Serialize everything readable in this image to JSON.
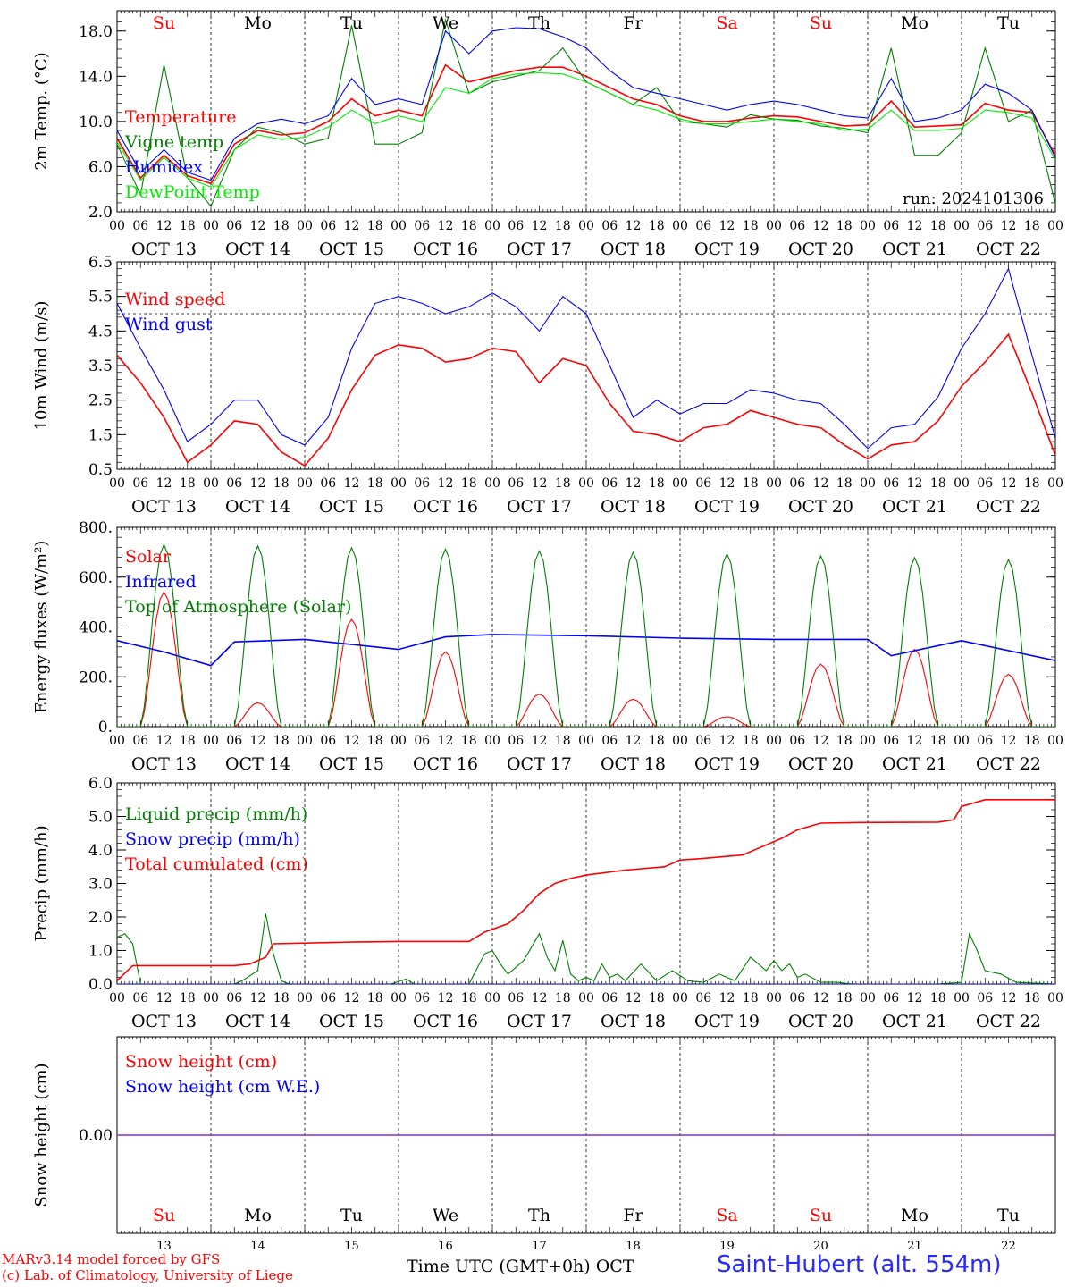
{
  "run_label": "run: 2024101306",
  "days": [
    {
      "abbr": "Su",
      "date": "OCT 13",
      "num": "13",
      "color": "#ff0000"
    },
    {
      "abbr": "Mo",
      "date": "OCT 14",
      "num": "14",
      "color": "#000000"
    },
    {
      "abbr": "Tu",
      "date": "OCT 15",
      "num": "15",
      "color": "#000000"
    },
    {
      "abbr": "We",
      "date": "OCT 16",
      "num": "16",
      "color": "#000000"
    },
    {
      "abbr": "Th",
      "date": "OCT 17",
      "num": "17",
      "color": "#000000"
    },
    {
      "abbr": "Fr",
      "date": "OCT 18",
      "num": "18",
      "color": "#000000"
    },
    {
      "abbr": "Sa",
      "date": "OCT 19",
      "num": "19",
      "color": "#ff0000"
    },
    {
      "abbr": "Su",
      "date": "OCT 20",
      "num": "20",
      "color": "#ff0000"
    },
    {
      "abbr": "Mo",
      "date": "OCT 21",
      "num": "21",
      "color": "#000000"
    },
    {
      "abbr": "Tu",
      "date": "OCT 22",
      "num": "22",
      "color": "#000000"
    }
  ],
  "hour_ticks": [
    "00",
    "06",
    "12",
    "18"
  ],
  "last_tick": "00",
  "footer": {
    "credits_line1": "MARv3.14 model forced by GFS",
    "credits_line2": "(c) Lab. of Climatology, University of Liege",
    "xaxis_title": "Time UTC (GMT+0h) OCT",
    "station": "Saint-Hubert (alt. 554m)"
  },
  "chart_data": [
    {
      "type": "line",
      "ylabel": "2m Temp. (°C)",
      "ylim": [
        2,
        19.8
      ],
      "yticks": [
        2,
        6,
        10,
        14,
        18
      ],
      "ytick_labels": [
        "2.0",
        "6.0",
        "10.0",
        "14.0",
        "18.0"
      ],
      "x_hours": [
        0,
        6,
        12,
        18,
        24,
        30,
        36,
        42,
        48,
        54,
        60,
        66,
        72,
        78,
        84,
        90,
        96,
        102,
        108,
        114,
        120,
        126,
        132,
        138,
        144,
        150,
        156,
        162,
        168,
        174,
        180,
        186,
        192,
        198,
        204,
        210,
        216,
        222,
        228,
        234,
        240
      ],
      "series": [
        {
          "name": "Temperature",
          "color": "#ff0000",
          "values": [
            8.5,
            5.0,
            7.0,
            5.2,
            4.5,
            8.0,
            9.2,
            8.8,
            9.0,
            10.0,
            12.0,
            10.5,
            11.0,
            10.5,
            15.0,
            13.5,
            14.0,
            14.5,
            14.8,
            14.8,
            14.0,
            13.0,
            12.0,
            11.5,
            10.5,
            10.0,
            10.0,
            10.3,
            10.5,
            10.4,
            10.0,
            9.6,
            9.7,
            11.8,
            9.5,
            9.6,
            9.7,
            11.6,
            11.0,
            10.8,
            7.0
          ]
        },
        {
          "name": "Vigne temp",
          "color": "#008000",
          "values": [
            8.0,
            3.5,
            15.0,
            5.0,
            2.5,
            7.5,
            9.5,
            9.0,
            8.0,
            8.5,
            18.5,
            8.0,
            8.0,
            9.0,
            19.0,
            12.5,
            13.5,
            14.0,
            14.5,
            16.5,
            13.5,
            12.5,
            11.5,
            13.0,
            10.0,
            9.8,
            9.5,
            10.6,
            10.2,
            10.1,
            9.6,
            9.4,
            9.0,
            16.5,
            7.0,
            7.0,
            9.0,
            16.5,
            10.0,
            11.0,
            2.7
          ]
        },
        {
          "name": "Humidex",
          "color": "#0000ff",
          "values": [
            9.2,
            5.5,
            7.5,
            5.5,
            4.8,
            8.5,
            9.8,
            10.2,
            9.8,
            10.5,
            13.8,
            11.5,
            12.0,
            11.5,
            18.0,
            16.0,
            18.0,
            18.3,
            18.2,
            17.5,
            16.5,
            14.5,
            13.0,
            12.5,
            12.0,
            11.5,
            11.0,
            11.5,
            11.8,
            11.5,
            11.0,
            10.5,
            10.3,
            13.8,
            10.0,
            10.3,
            11.0,
            13.3,
            12.5,
            11.0,
            6.8
          ]
        },
        {
          "name": "DewPoint Temp",
          "color": "#00ee00",
          "values": [
            8.2,
            4.8,
            6.8,
            5.0,
            4.2,
            7.5,
            8.8,
            8.4,
            8.6,
            9.5,
            11.0,
            9.8,
            10.5,
            10.0,
            13.0,
            12.5,
            13.8,
            14.2,
            14.3,
            14.2,
            13.5,
            12.5,
            11.5,
            11.0,
            10.2,
            9.8,
            9.8,
            10.0,
            10.2,
            10.0,
            9.8,
            9.2,
            9.3,
            11.0,
            9.2,
            9.2,
            9.4,
            11.0,
            10.8,
            10.3,
            6.6
          ]
        }
      ]
    },
    {
      "type": "line",
      "ylabel": "10m Wind (m/s)",
      "ylim": [
        0.5,
        6.5
      ],
      "yticks": [
        0.5,
        1.5,
        2.5,
        3.5,
        4.5,
        5.5,
        6.5
      ],
      "ytick_labels": [
        "0.5",
        "1.5",
        "2.5",
        "3.5",
        "4.5",
        "5.5",
        "6.5"
      ],
      "reference_line": 5.0,
      "x_hours": [
        0,
        6,
        12,
        18,
        24,
        30,
        36,
        42,
        48,
        54,
        60,
        66,
        72,
        78,
        84,
        90,
        96,
        102,
        108,
        114,
        120,
        126,
        132,
        138,
        144,
        150,
        156,
        162,
        168,
        174,
        180,
        186,
        192,
        198,
        204,
        210,
        216,
        222,
        228,
        234,
        240
      ],
      "series": [
        {
          "name": "Wind speed",
          "color": "#ff0000",
          "values": [
            3.8,
            3.0,
            2.0,
            0.7,
            1.2,
            1.9,
            1.8,
            1.0,
            0.6,
            1.4,
            2.8,
            3.8,
            4.1,
            4.0,
            3.6,
            3.7,
            4.0,
            3.9,
            3.0,
            3.7,
            3.5,
            2.4,
            1.6,
            1.5,
            1.3,
            1.7,
            1.8,
            2.2,
            2.0,
            1.8,
            1.7,
            1.2,
            0.8,
            1.2,
            1.3,
            1.9,
            2.9,
            3.6,
            4.4,
            2.7,
            0.9
          ]
        },
        {
          "name": "Wind gust",
          "color": "#0000ff",
          "values": [
            5.3,
            4.0,
            2.8,
            1.3,
            1.8,
            2.5,
            2.5,
            1.5,
            1.2,
            2.0,
            4.0,
            5.3,
            5.5,
            5.3,
            5.0,
            5.2,
            5.6,
            5.2,
            4.5,
            5.5,
            5.0,
            3.5,
            2.0,
            2.5,
            2.1,
            2.4,
            2.4,
            2.8,
            2.7,
            2.5,
            2.4,
            1.8,
            1.1,
            1.7,
            1.8,
            2.6,
            4.0,
            5.0,
            6.3,
            3.8,
            1.4
          ]
        }
      ]
    },
    {
      "type": "line",
      "ylabel": "Energy fluxes (W/m²)",
      "ylim": [
        0,
        800
      ],
      "yticks": [
        0,
        200,
        400,
        600,
        800
      ],
      "ytick_labels": [
        "0.",
        "200.",
        "400.",
        "600.",
        "800."
      ],
      "daylight_hours": [
        6,
        18
      ],
      "series": [
        {
          "name": "Solar",
          "color": "#ff0000",
          "daily_peaks": [
            540,
            95,
            430,
            300,
            130,
            110,
            40,
            250,
            310,
            210
          ]
        },
        {
          "name": "Infrared",
          "color": "#0000ff",
          "x_hours": [
            0,
            12,
            24,
            30,
            48,
            72,
            84,
            96,
            120,
            144,
            168,
            192,
            198,
            216,
            240
          ],
          "values": [
            345,
            300,
            245,
            340,
            350,
            310,
            360,
            370,
            365,
            355,
            350,
            350,
            285,
            345,
            265
          ]
        },
        {
          "name": "Top of Atmosphere (Solar)",
          "color": "#008000",
          "daily_peaks": [
            730,
            725,
            718,
            712,
            705,
            700,
            693,
            685,
            678,
            670
          ]
        }
      ]
    },
    {
      "type": "line",
      "ylabel": "Precip (mm/h)",
      "ylim": [
        0,
        6
      ],
      "yticks": [
        0,
        1,
        2,
        3,
        4,
        5,
        6
      ],
      "ytick_labels": [
        "0.0",
        "1.0",
        "2.0",
        "3.0",
        "4.0",
        "5.0",
        "6.0"
      ],
      "series": [
        {
          "name": "Liquid precip (mm/h)",
          "color": "#008000",
          "x_hours": [
            0,
            2,
            4,
            6,
            8,
            30,
            32,
            36,
            38,
            40,
            42,
            44,
            70,
            74,
            76,
            90,
            94,
            96,
            98,
            100,
            104,
            108,
            110,
            112,
            114,
            116,
            118,
            120,
            122,
            124,
            126,
            128,
            130,
            134,
            138,
            142,
            146,
            150,
            154,
            158,
            162,
            166,
            168,
            170,
            172,
            174,
            176,
            180,
            184,
            188,
            210,
            216,
            218,
            220,
            222,
            226,
            230,
            240
          ],
          "values": [
            1.4,
            1.5,
            1.2,
            0,
            0,
            0,
            0.1,
            0.4,
            2.1,
            0.9,
            0.1,
            0,
            0,
            0.15,
            0,
            0,
            0.9,
            1.0,
            0.6,
            0.3,
            0.7,
            1.5,
            0.8,
            0.4,
            1.3,
            0.3,
            0.1,
            0.2,
            0.1,
            0.6,
            0.2,
            0.3,
            0.1,
            0.6,
            0.1,
            0.4,
            0.1,
            0.05,
            0.3,
            0.1,
            0.8,
            0.4,
            0.7,
            0.4,
            0.6,
            0.2,
            0.3,
            0.05,
            0.05,
            0,
            0,
            0.05,
            1.5,
            1.0,
            0.4,
            0.3,
            0.05,
            0
          ]
        },
        {
          "name": "Snow precip (mm/h)",
          "color": "#0000ff",
          "x_hours": [
            0,
            240
          ],
          "values": [
            0,
            0
          ]
        },
        {
          "name": "Total cumulated (cm)",
          "color": "#ff0000",
          "x_hours": [
            0,
            4,
            30,
            34,
            38,
            40,
            60,
            72,
            90,
            94,
            100,
            104,
            108,
            112,
            116,
            120,
            130,
            140,
            144,
            150,
            160,
            165,
            170,
            174,
            180,
            190,
            210,
            214,
            216,
            222,
            240
          ],
          "values": [
            0.1,
            0.55,
            0.55,
            0.6,
            0.8,
            1.2,
            1.25,
            1.27,
            1.27,
            1.55,
            1.8,
            2.2,
            2.7,
            3.0,
            3.15,
            3.25,
            3.4,
            3.5,
            3.7,
            3.75,
            3.85,
            4.1,
            4.35,
            4.6,
            4.8,
            4.82,
            4.83,
            4.9,
            5.3,
            5.5,
            5.5
          ]
        }
      ]
    },
    {
      "type": "line",
      "ylabel": "Snow height (cm)",
      "ylim": [
        -1,
        1
      ],
      "yticks": [
        0
      ],
      "ytick_labels": [
        "0.00"
      ],
      "series": [
        {
          "name": "Snow height (cm)",
          "color": "#ff0000",
          "x_hours": [
            0,
            240
          ],
          "values": [
            0,
            0
          ]
        },
        {
          "name": "Snow height (cm W.E.)",
          "color": "#0000ff",
          "x_hours": [
            0,
            240
          ],
          "values": [
            0,
            0
          ]
        }
      ]
    }
  ]
}
